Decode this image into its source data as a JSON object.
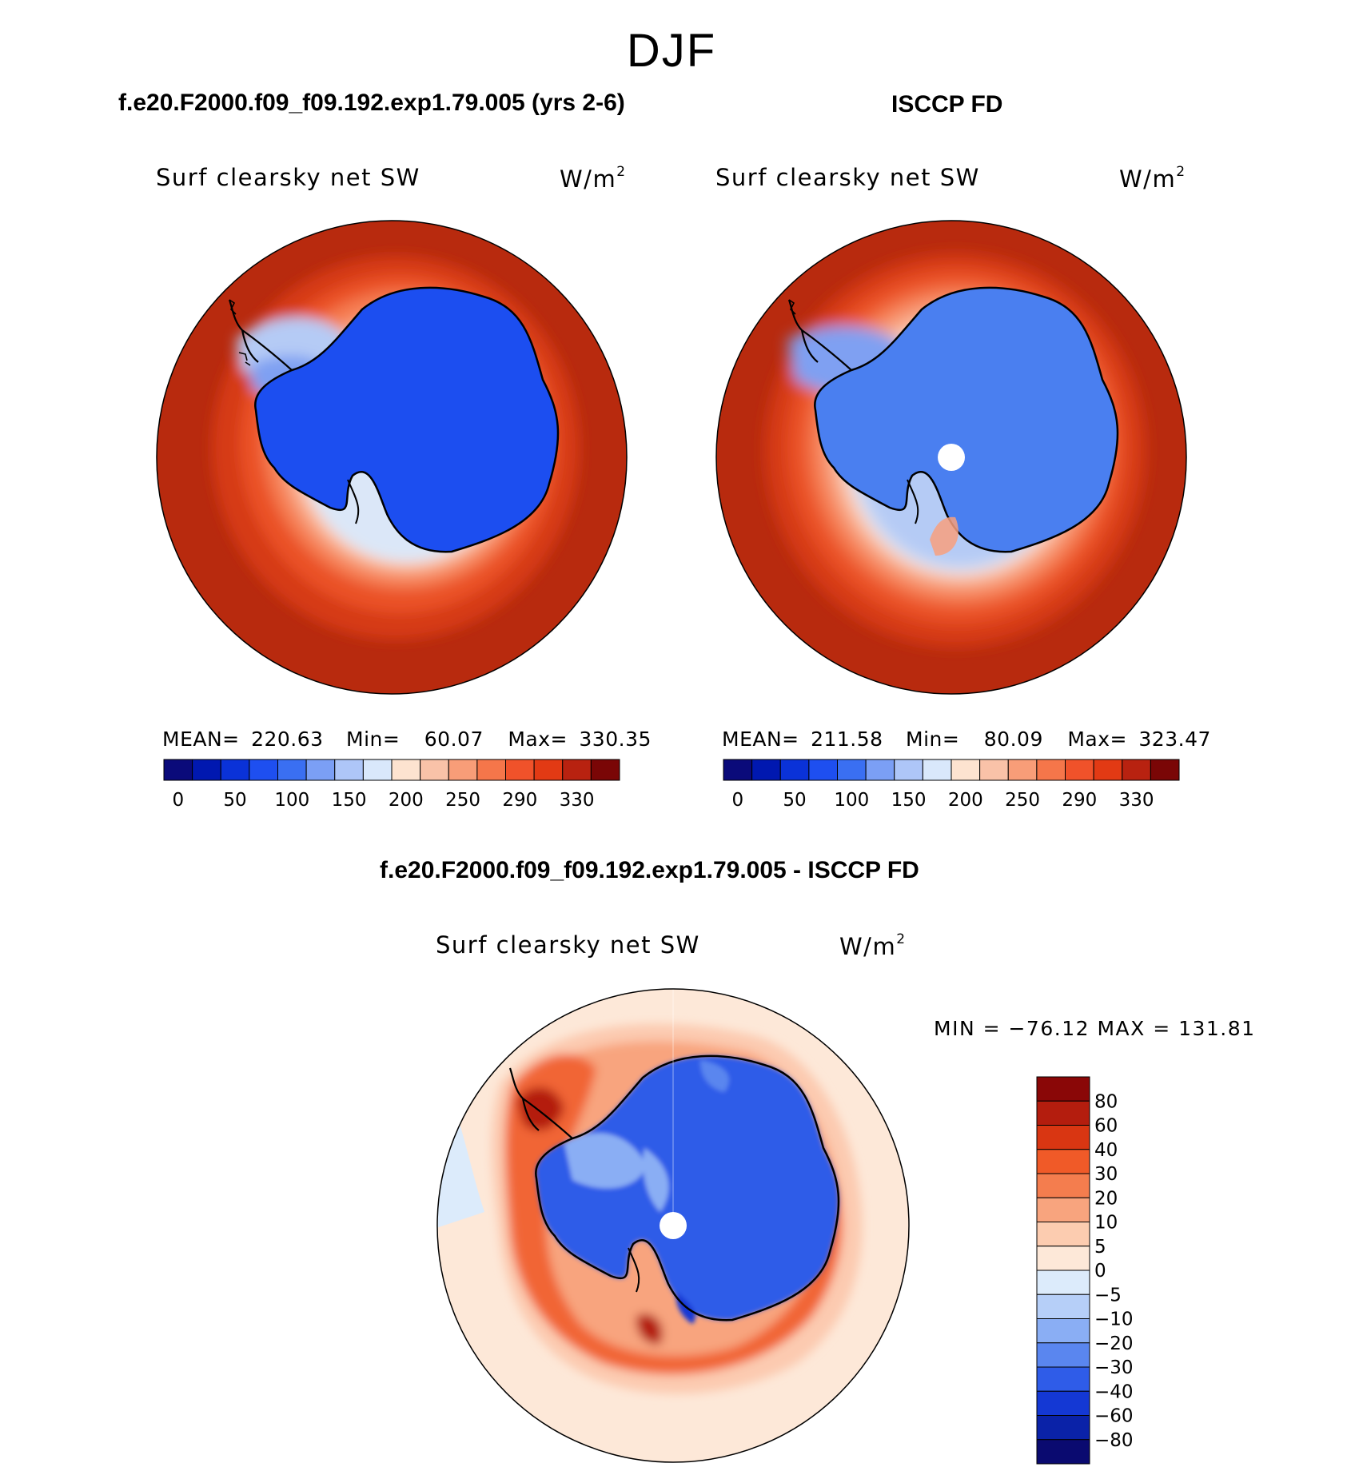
{
  "season": "DJF",
  "panels": [
    {
      "id": "model",
      "case_title": "f.e20.F2000.f09_f09.192.exp1.79.005 (yrs 2-6)",
      "variable": "Surf clearsky net SW",
      "units_base": "W/m",
      "units_exp": "2",
      "mean_label": "MEAN=",
      "mean": "220.63",
      "min_label": "Min=",
      "min": "60.07",
      "max_label": "Max=",
      "max": "330.35",
      "has_pole_hole": false
    },
    {
      "id": "obs",
      "case_title": "ISCCP FD",
      "variable": "Surf clearsky net SW",
      "units_base": "W/m",
      "units_exp": "2",
      "mean_label": "MEAN=",
      "mean": "211.58",
      "min_label": "Min=",
      "min": "80.09",
      "max_label": "Max=",
      "max": "323.47",
      "has_pole_hole": true
    }
  ],
  "colorbar_top": {
    "tick_labels": [
      "0",
      "50",
      "100",
      "150",
      "200",
      "250",
      "290",
      "330"
    ],
    "colors": [
      "#0a0a7a",
      "#0018b0",
      "#0a32d8",
      "#1e4ff0",
      "#3a6ff2",
      "#7b9ff5",
      "#aec6f8",
      "#d9e8fb",
      "#fde3d0",
      "#f9c2a8",
      "#f89d78",
      "#f5764a",
      "#f0522a",
      "#e23a14",
      "#b82210",
      "#7a0606"
    ]
  },
  "diff": {
    "case_title": "f.e20.F2000.f09_f09.192.exp1.79.005 - ISCCP FD",
    "variable": "Surf clearsky net SW",
    "units_base": "W/m",
    "units_exp": "2",
    "minmax": "MIN = −76.12 MAX = 131.81",
    "colorbar_labels": [
      "80",
      "60",
      "40",
      "30",
      "20",
      "10",
      "5",
      "0",
      "−5",
      "−10",
      "−20",
      "−30",
      "−40",
      "−60",
      "−80"
    ],
    "colorbar_colors": [
      "#8a0707",
      "#b41d0e",
      "#d93612",
      "#f05a28",
      "#f47d4e",
      "#f8a47e",
      "#fcccb0",
      "#fde8d8",
      "#dcebfb",
      "#b6cff8",
      "#8aaef4",
      "#5a86ef",
      "#2f5ce8",
      "#1438d4",
      "#0a22a8",
      "#0a0a70"
    ]
  }
}
